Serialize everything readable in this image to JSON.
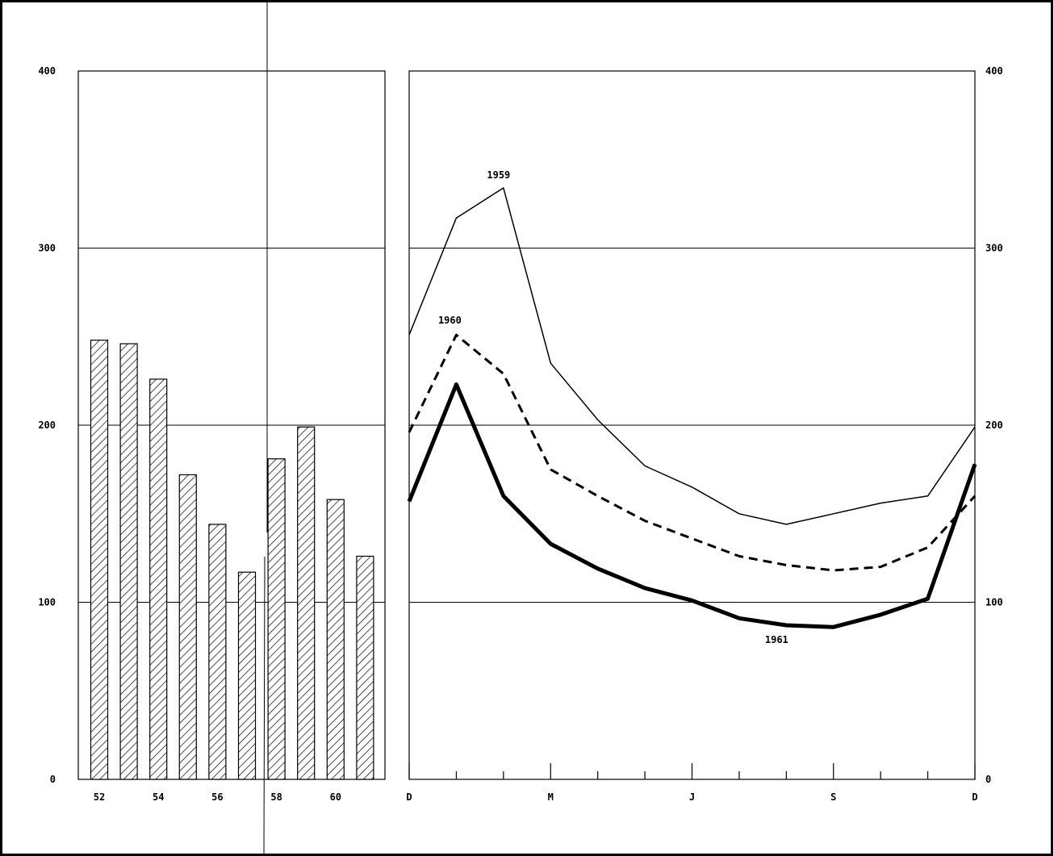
{
  "chart_data": [
    {
      "type": "bar",
      "categories": [
        "52",
        "53",
        "54",
        "55",
        "56",
        "57",
        "58",
        "59",
        "60",
        "61"
      ],
      "values": [
        248,
        246,
        226,
        172,
        144,
        117,
        181,
        199,
        158,
        126
      ],
      "x_tick_labels": [
        "52",
        "54",
        "56",
        "58",
        "60"
      ],
      "y_tick_labels": [
        "0",
        "100",
        "200",
        "300",
        "400"
      ],
      "ylim": [
        0,
        400
      ],
      "fill_pattern": "diagonal-hatch",
      "grid": true
    },
    {
      "type": "line",
      "x": [
        "D",
        "",
        "",
        "M",
        "",
        "",
        "J",
        "",
        "",
        "S",
        "",
        "",
        "D"
      ],
      "x_tick_labels": [
        "D",
        "M",
        "J",
        "S",
        "D"
      ],
      "y_tick_labels": [
        "0",
        "100",
        "200",
        "300",
        "400"
      ],
      "ylim": [
        0,
        400
      ],
      "grid": true,
      "series": [
        {
          "name": "1959",
          "style": "thin-solid",
          "values": [
            251,
            317,
            334,
            235,
            203,
            177,
            165,
            150,
            144,
            150,
            156,
            160,
            199
          ]
        },
        {
          "name": "1960",
          "style": "dashed",
          "values": [
            196,
            251,
            229,
            175,
            160,
            146,
            136,
            126,
            121,
            118,
            120,
            131,
            160
          ]
        },
        {
          "name": "1961",
          "style": "thick-solid",
          "values": [
            157,
            223,
            160,
            133,
            119,
            108,
            101,
            91,
            87,
            86,
            93,
            102,
            178
          ]
        }
      ]
    }
  ]
}
